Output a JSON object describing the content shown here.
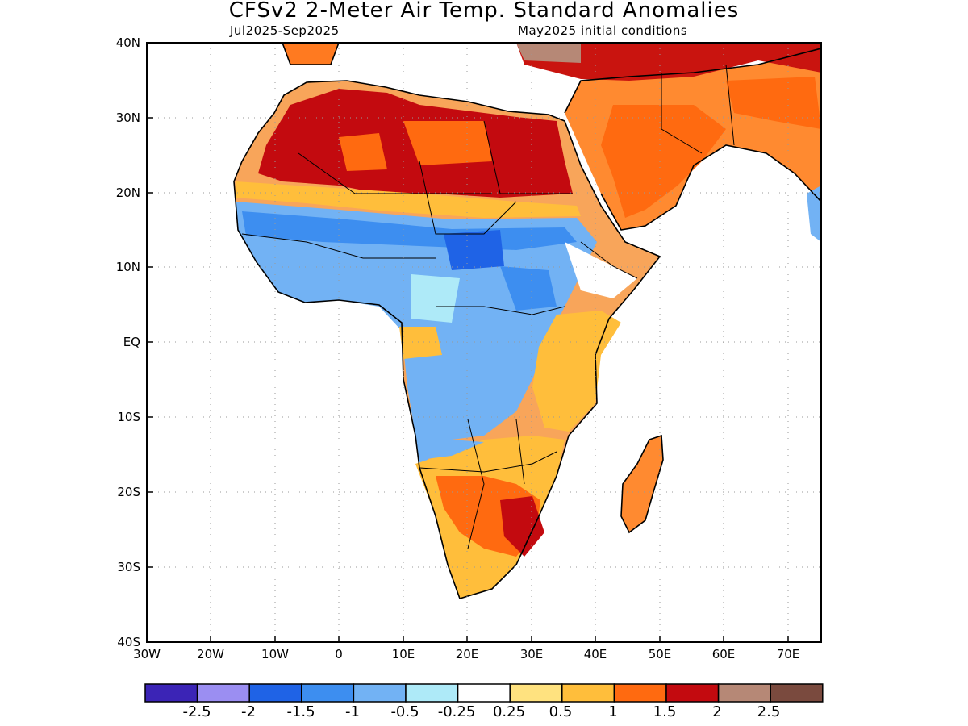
{
  "header": {
    "title": "CFSv2 2-Meter Air Temp. Standard Anomalies",
    "period": "Jul2025-Sep2025",
    "init": "May2025 initial conditions"
  },
  "axes": {
    "lat_labels": [
      "40N",
      "30N",
      "20N",
      "10N",
      "EQ",
      "10S",
      "20S",
      "30S",
      "40S"
    ],
    "lon_labels": [
      "30W",
      "20W",
      "10W",
      "0",
      "10E",
      "20E",
      "30E",
      "40E",
      "50E",
      "60E",
      "70E"
    ]
  },
  "colorbar": {
    "colors": [
      "#3b24b6",
      "#9b8ef2",
      "#1f63e6",
      "#3d8ef0",
      "#72b2f4",
      "#aeeaf8",
      "#ffffff",
      "#ffe27f",
      "#ffbe3b",
      "#ff6a10",
      "#c30a0f",
      "#b68876",
      "#7a4a3e"
    ],
    "labels": [
      "-2.5",
      "-2",
      "-1.5",
      "-1",
      "-0.5",
      "-0.25",
      "0.25",
      "0.5",
      "1",
      "1.5",
      "2",
      "2.5"
    ]
  }
}
